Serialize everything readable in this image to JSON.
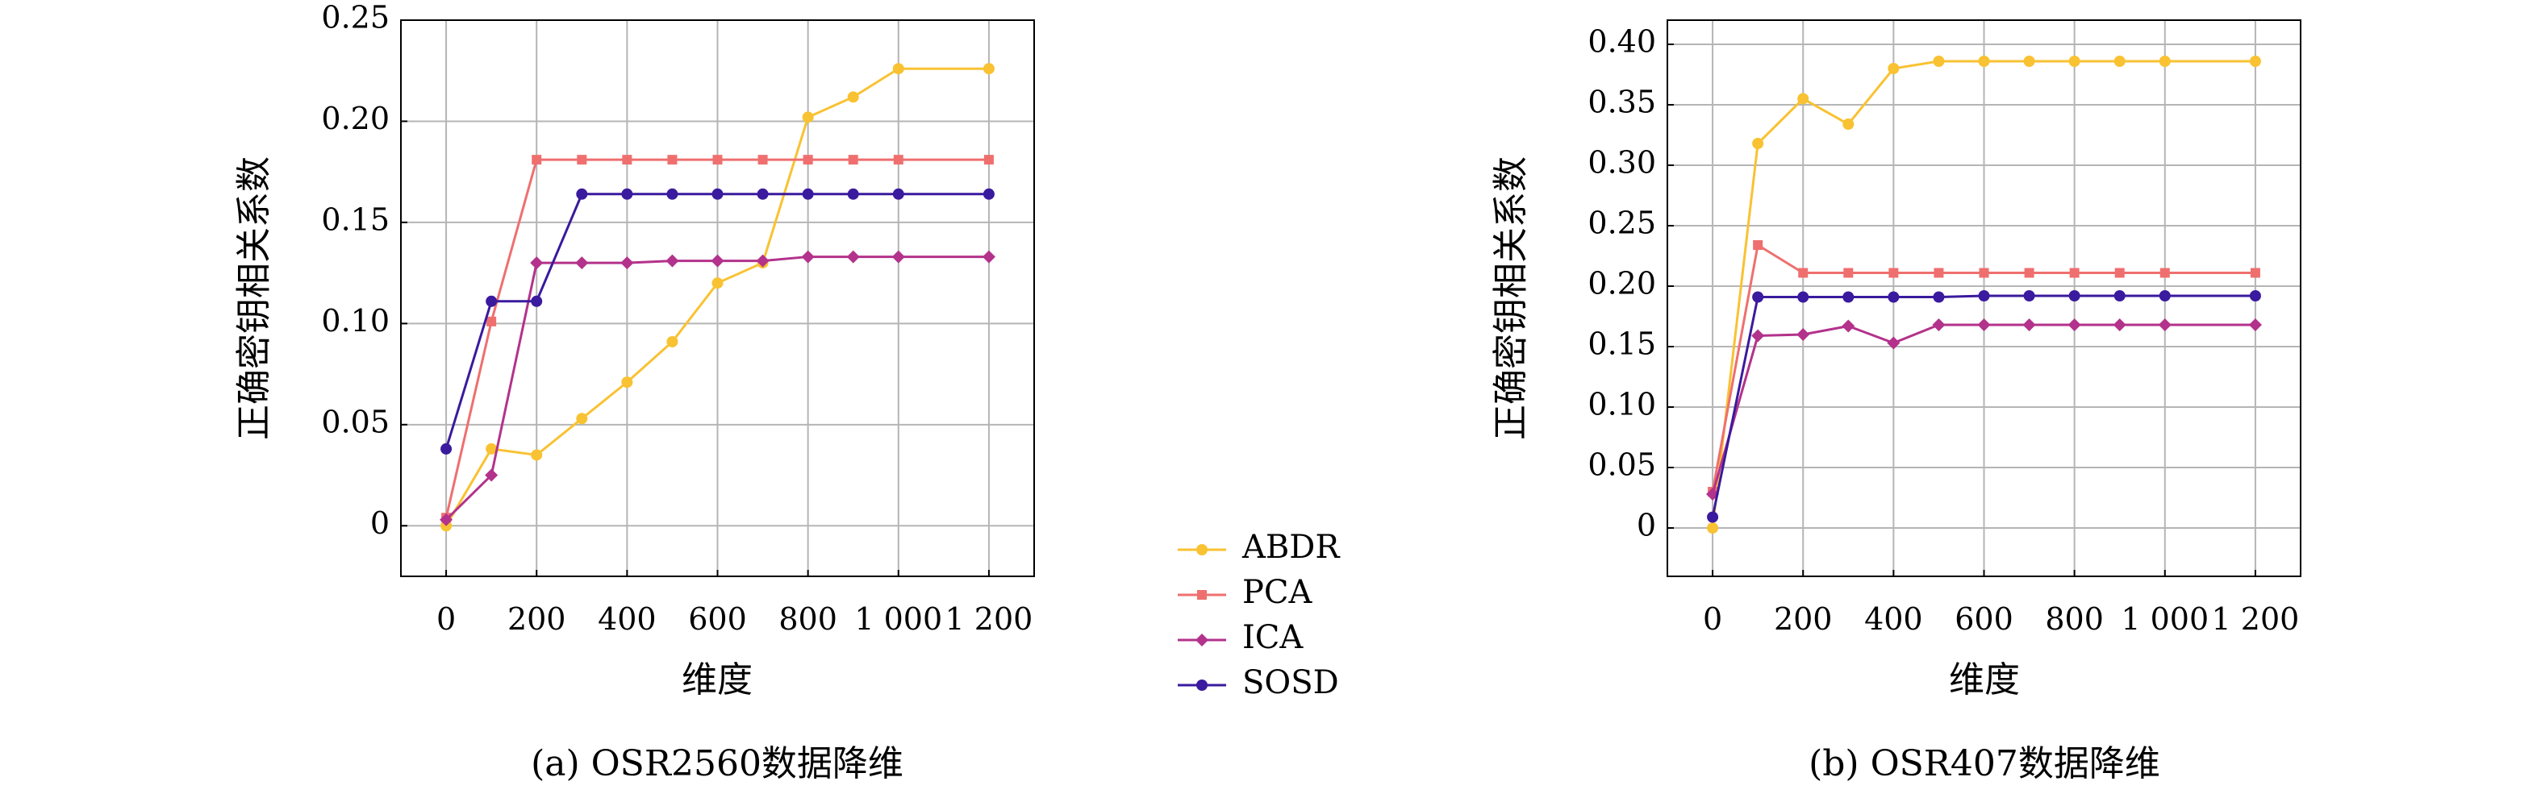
{
  "chart_data": [
    {
      "type": "line",
      "title": "",
      "caption": "(a) OSR2560数据降维",
      "xlabel": "维度",
      "ylabel": "正确密钥相关系数",
      "xlim": [
        -100,
        1300
      ],
      "ylim": [
        -0.025,
        0.25
      ],
      "x_ticks": [
        0,
        200,
        400,
        600,
        800,
        1000,
        1200
      ],
      "x_tick_labels": [
        "0",
        "200",
        "400",
        "600",
        "800",
        "1 000",
        "1 200"
      ],
      "y_ticks": [
        0,
        0.05,
        0.1,
        0.15,
        0.2,
        0.25
      ],
      "y_tick_labels": [
        "0",
        "0.05",
        "0.10",
        "0.15",
        "0.20",
        "0.25"
      ],
      "grid": true,
      "x": [
        0,
        100,
        200,
        300,
        400,
        500,
        600,
        700,
        800,
        900,
        1000,
        1200
      ],
      "series": [
        {
          "name": "ABDR",
          "values": [
            0.0,
            0.038,
            0.035,
            0.053,
            0.071,
            0.091,
            0.12,
            0.13,
            0.202,
            0.212,
            0.226,
            0.226
          ]
        },
        {
          "name": "PCA",
          "values": [
            0.004,
            0.101,
            0.181,
            0.181,
            0.181,
            0.181,
            0.181,
            0.181,
            0.181,
            0.181,
            0.181,
            0.181
          ]
        },
        {
          "name": "ICA",
          "values": [
            0.003,
            0.025,
            0.13,
            0.13,
            0.13,
            0.131,
            0.131,
            0.131,
            0.133,
            0.133,
            0.133,
            0.133
          ]
        },
        {
          "name": "SOSD",
          "values": [
            0.038,
            0.111,
            0.111,
            0.164,
            0.164,
            0.164,
            0.164,
            0.164,
            0.164,
            0.164,
            0.164,
            0.164
          ]
        }
      ]
    },
    {
      "type": "line",
      "title": "",
      "caption": "(b) OSR407数据降维",
      "xlabel": "维度",
      "ylabel": "正确密钥相关系数",
      "xlim": [
        -100,
        1300
      ],
      "ylim": [
        -0.04,
        0.42
      ],
      "x_ticks": [
        0,
        200,
        400,
        600,
        800,
        1000,
        1200
      ],
      "x_tick_labels": [
        "0",
        "200",
        "400",
        "600",
        "800",
        "1 000",
        "1 200"
      ],
      "y_ticks": [
        0,
        0.05,
        0.1,
        0.15,
        0.2,
        0.25,
        0.3,
        0.35,
        0.4
      ],
      "y_tick_labels": [
        "0",
        "0.05",
        "0.10",
        "0.15",
        "0.20",
        "0.25",
        "0.30",
        "0.35",
        "0.40"
      ],
      "grid": true,
      "x": [
        0,
        100,
        200,
        300,
        400,
        500,
        600,
        700,
        800,
        900,
        1000,
        1200
      ],
      "series": [
        {
          "name": "ABDR",
          "values": [
            0.0,
            0.318,
            0.355,
            0.334,
            0.38,
            0.386,
            0.386,
            0.386,
            0.386,
            0.386,
            0.386,
            0.386
          ]
        },
        {
          "name": "PCA",
          "values": [
            0.03,
            0.234,
            0.211,
            0.211,
            0.211,
            0.211,
            0.211,
            0.211,
            0.211,
            0.211,
            0.211,
            0.211
          ]
        },
        {
          "name": "ICA",
          "values": [
            0.028,
            0.159,
            0.16,
            0.167,
            0.153,
            0.168,
            0.168,
            0.168,
            0.168,
            0.168,
            0.168,
            0.168
          ]
        },
        {
          "name": "SOSD",
          "values": [
            0.009,
            0.191,
            0.191,
            0.191,
            0.191,
            0.191,
            0.192,
            0.192,
            0.192,
            0.192,
            0.192,
            0.192
          ]
        }
      ]
    }
  ],
  "legend": {
    "placement": "center-bottom",
    "items": [
      {
        "name": "ABDR",
        "color": "#f9c232",
        "marker": "circle"
      },
      {
        "name": "PCA",
        "color": "#ef6f6f",
        "marker": "square"
      },
      {
        "name": "ICA",
        "color": "#b3328b",
        "marker": "diamond"
      },
      {
        "name": "SOSD",
        "color": "#3a1a9e",
        "marker": "circle"
      }
    ]
  },
  "colors": {
    "grid": "#b5b5b5",
    "axis": "#000000"
  }
}
